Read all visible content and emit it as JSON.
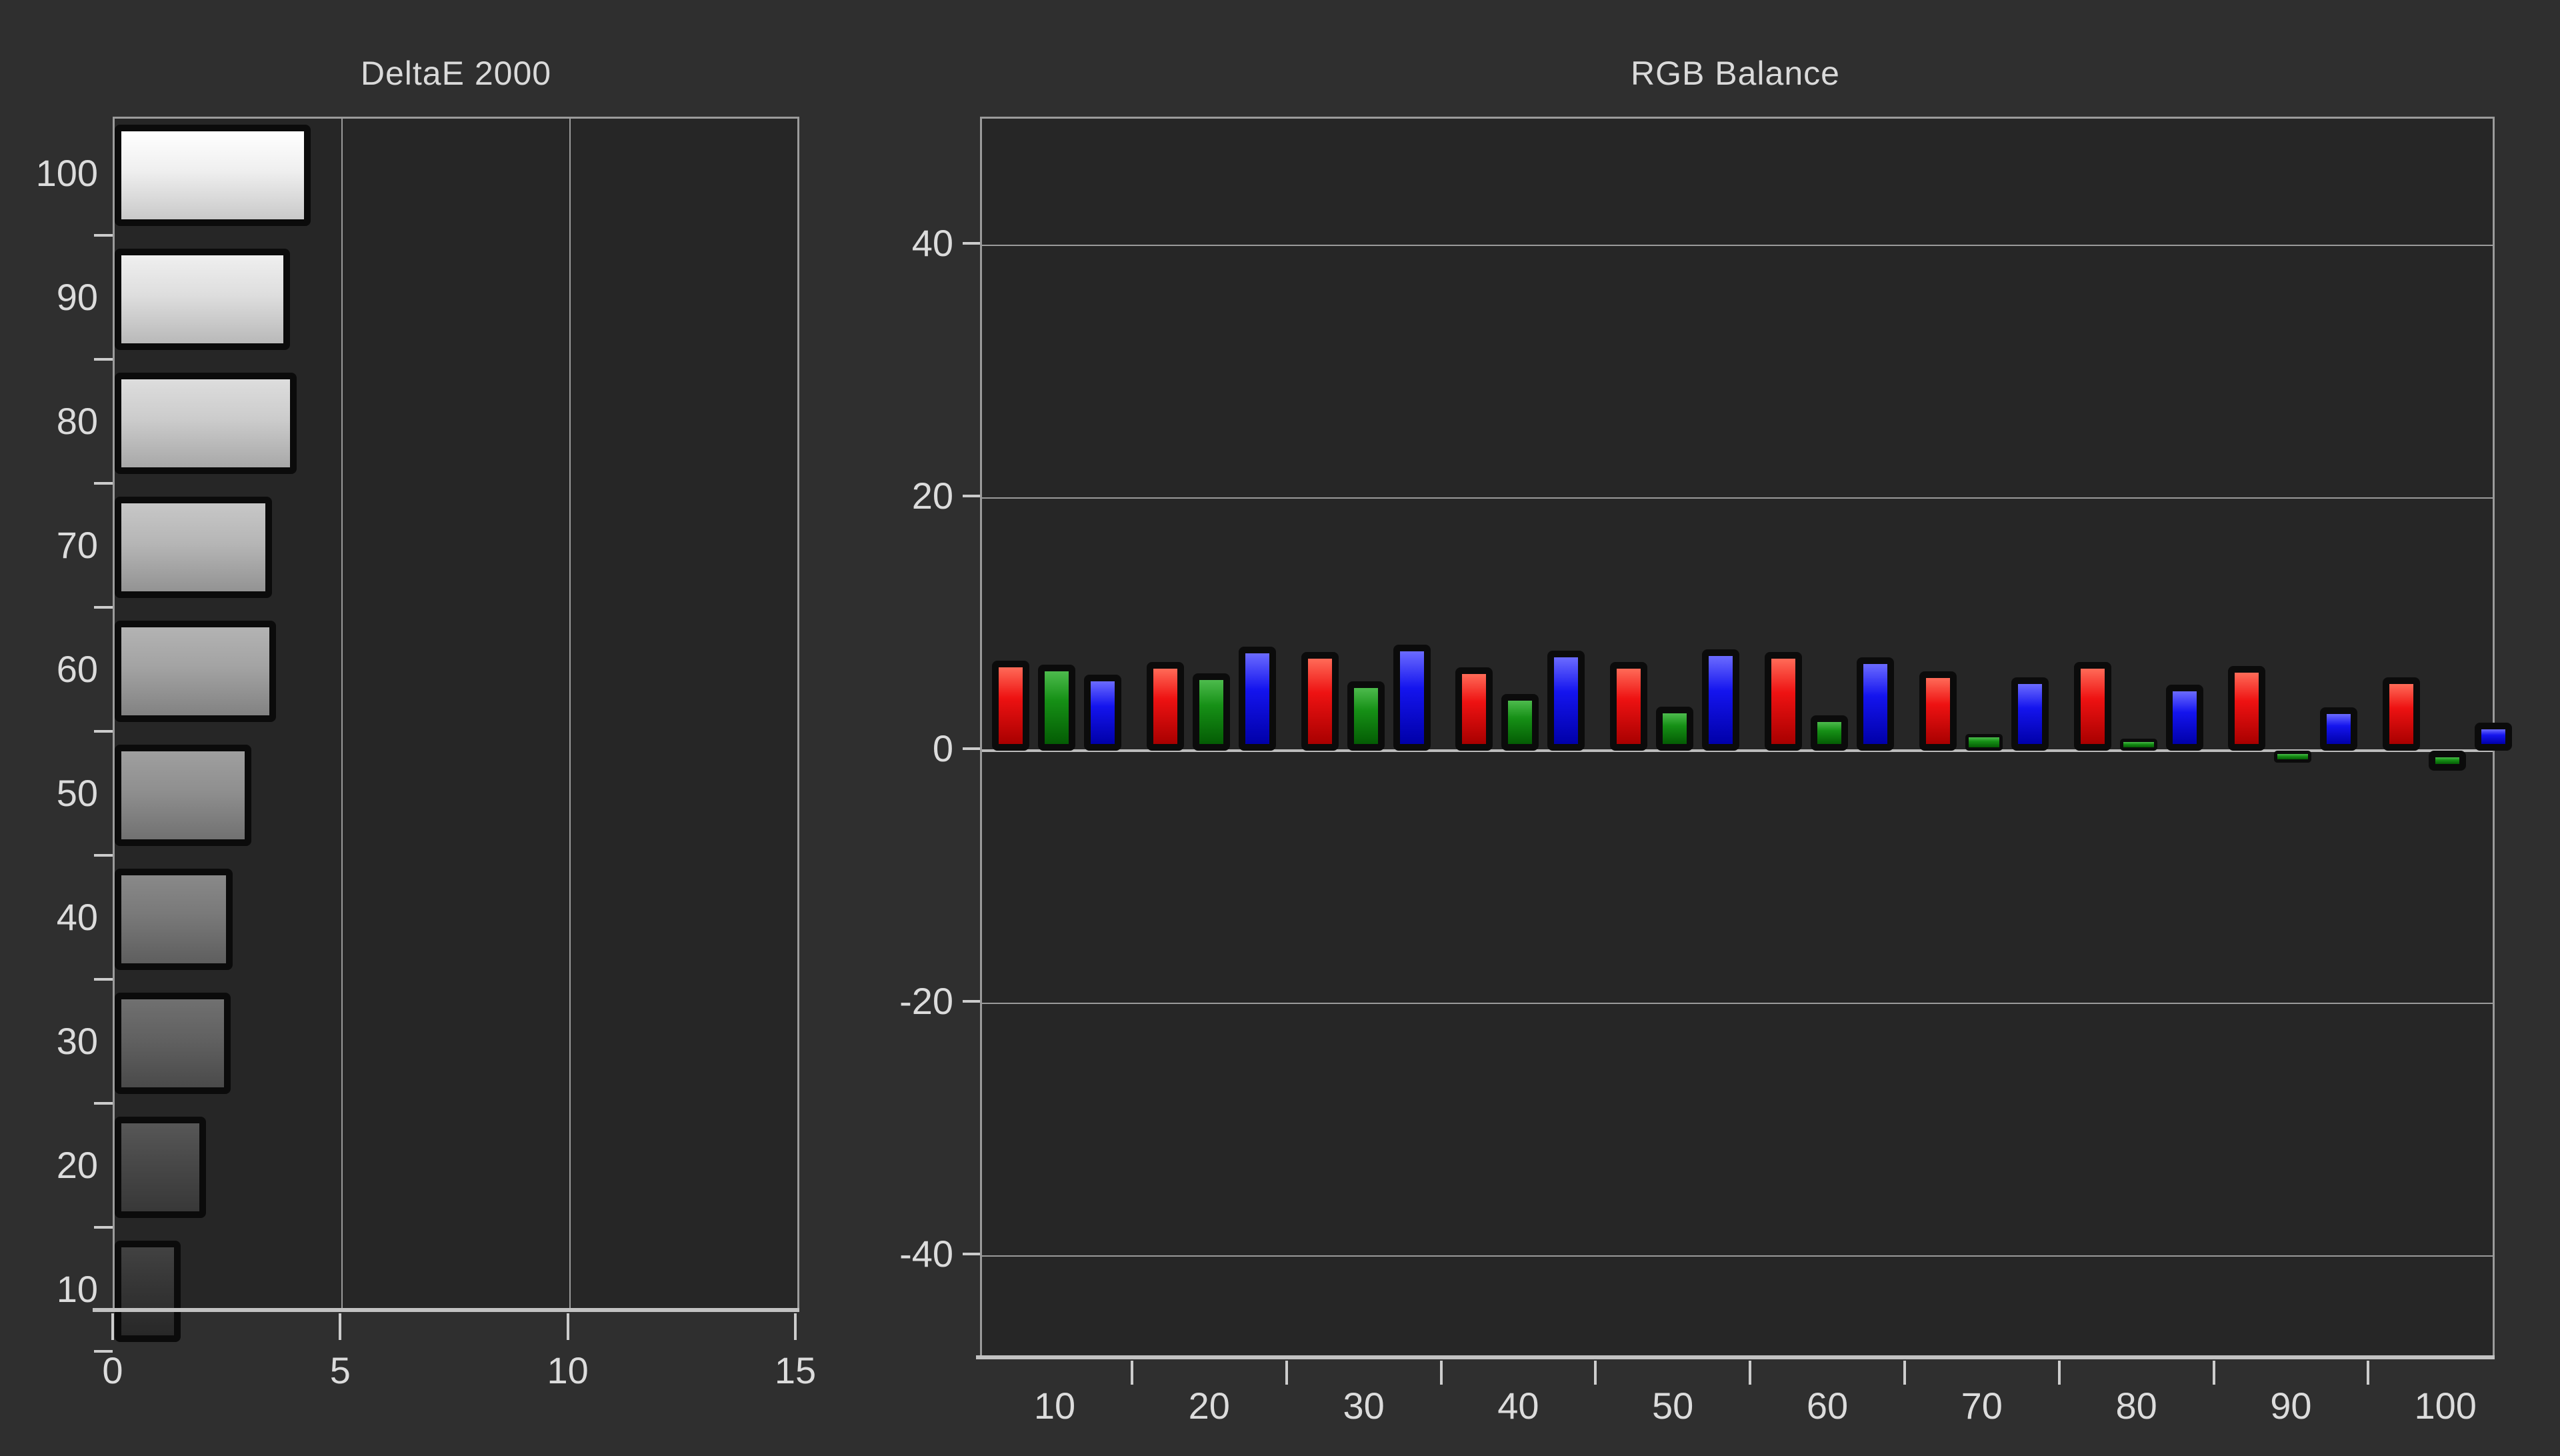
{
  "window": {
    "background": "#2f2f2f",
    "plot_background": "#262626",
    "grid_color": "#9b9b9b",
    "text_color": "#dcdcdc"
  },
  "titles": {
    "deltae": "DeltaE 2000",
    "rgb": "RGB Balance"
  },
  "chart_data": [
    {
      "id": "deltae",
      "type": "bar",
      "orientation": "horizontal",
      "title": "DeltaE 2000",
      "categories": [
        "100",
        "90",
        "80",
        "70",
        "60",
        "50",
        "40",
        "30",
        "20",
        "10"
      ],
      "values": [
        4.3,
        3.85,
        4.0,
        3.45,
        3.55,
        3.0,
        2.6,
        2.55,
        2.0,
        1.45
      ],
      "x_ticks": [
        "0",
        "5",
        "10",
        "15"
      ],
      "x_tick_values": [
        0,
        5,
        10,
        15
      ],
      "xlim": [
        0,
        15
      ],
      "grid": true,
      "legend": "none",
      "bar_shades": [
        [
          "#ffffff",
          "#efefef",
          "#c9c9c9"
        ],
        [
          "#efefef",
          "#dedede",
          "#b9b9b9"
        ],
        [
          "#dddddd",
          "#cccccc",
          "#a8a8a8"
        ],
        [
          "#c7c7c7",
          "#b6b6b6",
          "#939393"
        ],
        [
          "#b3b3b3",
          "#a3a3a3",
          "#828282"
        ],
        [
          "#9f9f9f",
          "#8f8f8f",
          "#717171"
        ],
        [
          "#898989",
          "#797979",
          "#5e5e5e"
        ],
        [
          "#707070",
          "#616161",
          "#4a4a4a"
        ],
        [
          "#575757",
          "#484848",
          "#383838"
        ],
        [
          "#424242",
          "#353535",
          "#282828"
        ]
      ]
    },
    {
      "id": "rgb",
      "type": "bar",
      "title": "RGB Balance",
      "categories": [
        "10",
        "20",
        "30",
        "40",
        "50",
        "60",
        "70",
        "80",
        "90",
        "100"
      ],
      "series": [
        {
          "name": "Red",
          "color_key": "red",
          "values": [
            7.1,
            7.0,
            7.8,
            6.6,
            7.0,
            7.8,
            6.3,
            7.0,
            6.7,
            5.8
          ]
        },
        {
          "name": "Green",
          "color_key": "green",
          "values": [
            6.8,
            6.1,
            5.5,
            4.5,
            3.5,
            2.8,
            1.3,
            0.6,
            -0.2,
            -1.6
          ]
        },
        {
          "name": "Blue",
          "color_key": "blue",
          "values": [
            6.0,
            8.2,
            8.4,
            7.9,
            8.0,
            7.4,
            5.8,
            5.2,
            3.4,
            2.2
          ]
        }
      ],
      "y_ticks": [
        "40",
        "20",
        "0",
        "-20",
        "-40"
      ],
      "y_tick_values": [
        40,
        20,
        0,
        -20,
        -40
      ],
      "ylim": [
        -48,
        50
      ],
      "grid": true,
      "legend": "none",
      "series_gradients": {
        "red": [
          "#ff6b58",
          "#ee1212",
          "#a80000"
        ],
        "green": [
          "#4dbb4d",
          "#169016",
          "#045c04"
        ],
        "blue": [
          "#6b6bff",
          "#1414ee",
          "#0000a8"
        ]
      }
    }
  ]
}
